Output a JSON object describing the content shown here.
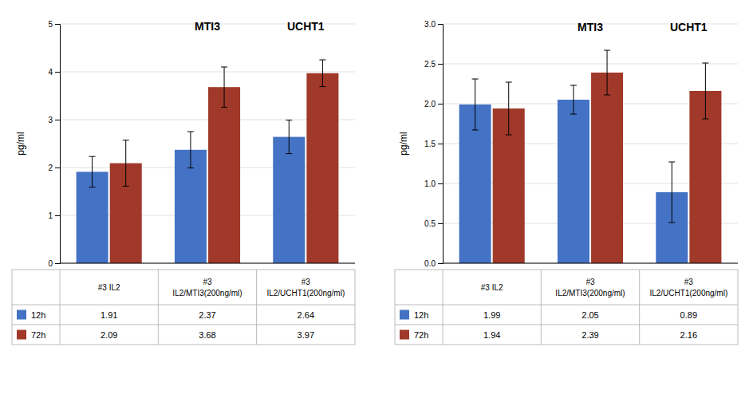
{
  "chart_data": [
    {
      "type": "bar",
      "categories": [
        "#3 IL2",
        "#3\nIL2/MTI3(200ng/ml)",
        "#3\nIL2/UCHT1(200ng/ml)"
      ],
      "series": [
        {
          "name": "12h",
          "color": "#4472C4",
          "values": [
            1.91,
            2.37,
            2.64
          ],
          "errors": [
            0.32,
            0.38,
            0.35
          ]
        },
        {
          "name": "72h",
          "color": "#A0392A",
          "values": [
            2.09,
            3.68,
            3.97
          ],
          "errors": [
            0.48,
            0.42,
            0.28
          ]
        }
      ],
      "ylabel": "pg/ml",
      "ylim": [
        0,
        5
      ],
      "yticks": [
        0,
        1,
        2,
        3,
        4,
        5
      ],
      "grid": true,
      "annotations": [
        {
          "text": "MTI3",
          "x": 1,
          "y": 4.82
        },
        {
          "text": "UCHT1",
          "x": 2,
          "y": 4.82
        }
      ]
    },
    {
      "type": "bar",
      "categories": [
        "#3 IL2",
        "#3\nIL2/MTI3(200ng/ml)",
        "#3\nIL2/UCHT1(200ng/ml)"
      ],
      "series": [
        {
          "name": "12h",
          "color": "#4472C4",
          "values": [
            1.99,
            2.05,
            0.89
          ],
          "errors": [
            0.32,
            0.18,
            0.38
          ]
        },
        {
          "name": "72h",
          "color": "#A0392A",
          "values": [
            1.94,
            2.39,
            2.16
          ],
          "errors": [
            0.33,
            0.28,
            0.35
          ]
        }
      ],
      "ylabel": "pg/ml",
      "ylim": [
        0,
        3
      ],
      "yticks": [
        {
          "value": 0,
          "label": "0.0"
        },
        {
          "value": 0.5,
          "label": "0.5"
        },
        {
          "value": 1,
          "label": "1.0"
        },
        {
          "value": 1.5,
          "label": "1.5"
        },
        {
          "value": 2,
          "label": "2.0"
        },
        {
          "value": 2.5,
          "label": "2.5"
        },
        {
          "value": 3,
          "label": "3.0"
        }
      ],
      "grid": true,
      "annotations": [
        {
          "text": "MTI3",
          "x": 1,
          "y": 2.88
        },
        {
          "text": "UCHT1",
          "x": 2,
          "y": 2.88
        }
      ]
    }
  ]
}
